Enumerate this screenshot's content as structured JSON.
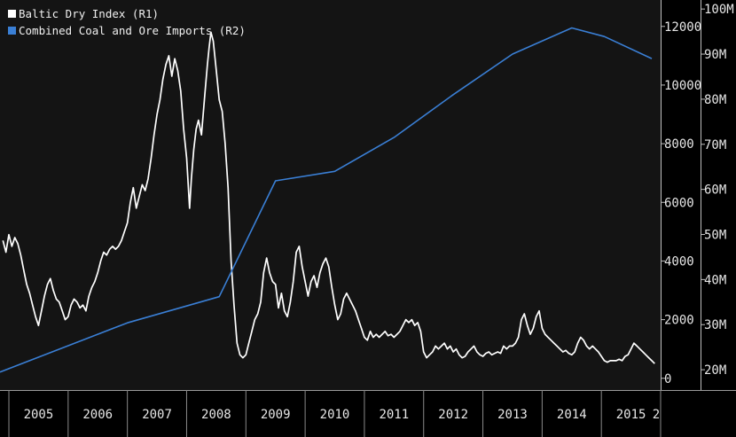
{
  "chart_data": {
    "type": "line",
    "title": "",
    "grid": false,
    "legend": {
      "placement": "top-left"
    },
    "legend_entries": [
      {
        "label": "Baltic Dry Index (R1)",
        "color": "#ffffff"
      },
      {
        "label": "Combined Coal and Ore Imports (R2)",
        "color": "#3a7fd5"
      }
    ],
    "x_axis": {
      "range": [
        2004.85,
        2016.0
      ],
      "tick_labels": [
        "2005",
        "2006",
        "2007",
        "2008",
        "2009",
        "2010",
        "2011",
        "2012",
        "2013",
        "2014",
        "2015",
        "2"
      ]
    },
    "r1_axis": {
      "range": [
        -400,
        12900
      ],
      "ticks": [
        0,
        2000,
        4000,
        6000,
        8000,
        10000,
        12000
      ],
      "tick_labels": [
        "0",
        "2000",
        "4000",
        "6000",
        "8000",
        "10000",
        "12000"
      ]
    },
    "r2_axis": {
      "range": [
        15500000,
        102000000
      ],
      "ticks": [
        20000000,
        30000000,
        40000000,
        50000000,
        60000000,
        70000000,
        80000000,
        90000000,
        100000000
      ],
      "tick_labels": [
        "20M",
        "30M",
        "40M",
        "50M",
        "60M",
        "70M",
        "80M",
        "90M",
        "100M"
      ]
    },
    "series": [
      {
        "name": "Baltic Dry Index (R1)",
        "axis": "r1",
        "color": "#ffffff",
        "points": [
          [
            2004.9,
            4700
          ],
          [
            2004.95,
            4300
          ],
          [
            2005.0,
            4900
          ],
          [
            2005.05,
            4500
          ],
          [
            2005.1,
            4800
          ],
          [
            2005.15,
            4600
          ],
          [
            2005.2,
            4200
          ],
          [
            2005.25,
            3700
          ],
          [
            2005.3,
            3200
          ],
          [
            2005.35,
            2900
          ],
          [
            2005.4,
            2500
          ],
          [
            2005.45,
            2100
          ],
          [
            2005.5,
            1800
          ],
          [
            2005.55,
            2300
          ],
          [
            2005.6,
            2800
          ],
          [
            2005.65,
            3200
          ],
          [
            2005.7,
            3400
          ],
          [
            2005.75,
            3000
          ],
          [
            2005.8,
            2700
          ],
          [
            2005.85,
            2600
          ],
          [
            2005.9,
            2300
          ],
          [
            2005.95,
            2000
          ],
          [
            2006.0,
            2100
          ],
          [
            2006.05,
            2500
          ],
          [
            2006.1,
            2700
          ],
          [
            2006.15,
            2600
          ],
          [
            2006.2,
            2400
          ],
          [
            2006.25,
            2500
          ],
          [
            2006.3,
            2300
          ],
          [
            2006.35,
            2800
          ],
          [
            2006.4,
            3100
          ],
          [
            2006.45,
            3300
          ],
          [
            2006.5,
            3600
          ],
          [
            2006.55,
            4000
          ],
          [
            2006.6,
            4300
          ],
          [
            2006.65,
            4200
          ],
          [
            2006.7,
            4400
          ],
          [
            2006.75,
            4500
          ],
          [
            2006.8,
            4400
          ],
          [
            2006.85,
            4500
          ],
          [
            2006.9,
            4700
          ],
          [
            2006.95,
            5000
          ],
          [
            2007.0,
            5300
          ],
          [
            2007.05,
            6000
          ],
          [
            2007.1,
            6500
          ],
          [
            2007.15,
            5800
          ],
          [
            2007.2,
            6200
          ],
          [
            2007.25,
            6600
          ],
          [
            2007.3,
            6400
          ],
          [
            2007.35,
            6800
          ],
          [
            2007.4,
            7500
          ],
          [
            2007.45,
            8300
          ],
          [
            2007.5,
            9000
          ],
          [
            2007.55,
            9500
          ],
          [
            2007.6,
            10200
          ],
          [
            2007.65,
            10700
          ],
          [
            2007.7,
            11000
          ],
          [
            2007.75,
            10300
          ],
          [
            2007.8,
            10900
          ],
          [
            2007.85,
            10500
          ],
          [
            2007.9,
            9800
          ],
          [
            2007.95,
            8500
          ],
          [
            2008.0,
            7500
          ],
          [
            2008.05,
            5800
          ],
          [
            2008.08,
            6800
          ],
          [
            2008.12,
            7800
          ],
          [
            2008.16,
            8500
          ],
          [
            2008.2,
            8800
          ],
          [
            2008.25,
            8300
          ],
          [
            2008.3,
            9500
          ],
          [
            2008.35,
            10700
          ],
          [
            2008.38,
            11300
          ],
          [
            2008.41,
            11800
          ],
          [
            2008.45,
            11500
          ],
          [
            2008.5,
            10500
          ],
          [
            2008.55,
            9500
          ],
          [
            2008.6,
            9100
          ],
          [
            2008.65,
            8000
          ],
          [
            2008.7,
            6500
          ],
          [
            2008.75,
            4000
          ],
          [
            2008.8,
            2500
          ],
          [
            2008.85,
            1200
          ],
          [
            2008.9,
            800
          ],
          [
            2008.95,
            700
          ],
          [
            2009.0,
            800
          ],
          [
            2009.05,
            1200
          ],
          [
            2009.1,
            1600
          ],
          [
            2009.15,
            2000
          ],
          [
            2009.2,
            2200
          ],
          [
            2009.25,
            2600
          ],
          [
            2009.3,
            3600
          ],
          [
            2009.35,
            4100
          ],
          [
            2009.4,
            3600
          ],
          [
            2009.45,
            3300
          ],
          [
            2009.5,
            3200
          ],
          [
            2009.55,
            2400
          ],
          [
            2009.6,
            2900
          ],
          [
            2009.65,
            2300
          ],
          [
            2009.7,
            2100
          ],
          [
            2009.75,
            2600
          ],
          [
            2009.8,
            3300
          ],
          [
            2009.85,
            4300
          ],
          [
            2009.9,
            4500
          ],
          [
            2009.95,
            3800
          ],
          [
            2010.0,
            3300
          ],
          [
            2010.05,
            2800
          ],
          [
            2010.1,
            3300
          ],
          [
            2010.15,
            3500
          ],
          [
            2010.2,
            3100
          ],
          [
            2010.25,
            3600
          ],
          [
            2010.3,
            3900
          ],
          [
            2010.35,
            4100
          ],
          [
            2010.4,
            3800
          ],
          [
            2010.45,
            3100
          ],
          [
            2010.5,
            2500
          ],
          [
            2010.55,
            2000
          ],
          [
            2010.6,
            2200
          ],
          [
            2010.65,
            2700
          ],
          [
            2010.7,
            2900
          ],
          [
            2010.75,
            2700
          ],
          [
            2010.8,
            2500
          ],
          [
            2010.85,
            2300
          ],
          [
            2010.9,
            2000
          ],
          [
            2010.95,
            1700
          ],
          [
            2011.0,
            1400
          ],
          [
            2011.05,
            1300
          ],
          [
            2011.1,
            1600
          ],
          [
            2011.15,
            1400
          ],
          [
            2011.2,
            1500
          ],
          [
            2011.25,
            1400
          ],
          [
            2011.3,
            1500
          ],
          [
            2011.35,
            1600
          ],
          [
            2011.4,
            1450
          ],
          [
            2011.45,
            1500
          ],
          [
            2011.5,
            1400
          ],
          [
            2011.55,
            1500
          ],
          [
            2011.6,
            1600
          ],
          [
            2011.65,
            1800
          ],
          [
            2011.7,
            2000
          ],
          [
            2011.75,
            1900
          ],
          [
            2011.8,
            2000
          ],
          [
            2011.85,
            1800
          ],
          [
            2011.9,
            1900
          ],
          [
            2011.95,
            1600
          ],
          [
            2012.0,
            900
          ],
          [
            2012.05,
            700
          ],
          [
            2012.1,
            800
          ],
          [
            2012.15,
            900
          ],
          [
            2012.2,
            1100
          ],
          [
            2012.25,
            1000
          ],
          [
            2012.3,
            1100
          ],
          [
            2012.35,
            1200
          ],
          [
            2012.4,
            1000
          ],
          [
            2012.45,
            1100
          ],
          [
            2012.5,
            900
          ],
          [
            2012.55,
            1000
          ],
          [
            2012.6,
            800
          ],
          [
            2012.65,
            700
          ],
          [
            2012.7,
            750
          ],
          [
            2012.75,
            900
          ],
          [
            2012.8,
            1000
          ],
          [
            2012.85,
            1100
          ],
          [
            2012.9,
            900
          ],
          [
            2012.95,
            800
          ],
          [
            2013.0,
            750
          ],
          [
            2013.05,
            850
          ],
          [
            2013.1,
            900
          ],
          [
            2013.15,
            800
          ],
          [
            2013.2,
            850
          ],
          [
            2013.25,
            900
          ],
          [
            2013.3,
            850
          ],
          [
            2013.35,
            1100
          ],
          [
            2013.4,
            1000
          ],
          [
            2013.45,
            1100
          ],
          [
            2013.5,
            1100
          ],
          [
            2013.55,
            1200
          ],
          [
            2013.6,
            1400
          ],
          [
            2013.65,
            2000
          ],
          [
            2013.7,
            2200
          ],
          [
            2013.75,
            1800
          ],
          [
            2013.8,
            1500
          ],
          [
            2013.85,
            1700
          ],
          [
            2013.9,
            2100
          ],
          [
            2013.95,
            2300
          ],
          [
            2014.0,
            1700
          ],
          [
            2014.05,
            1500
          ],
          [
            2014.1,
            1400
          ],
          [
            2014.15,
            1300
          ],
          [
            2014.2,
            1200
          ],
          [
            2014.25,
            1100
          ],
          [
            2014.3,
            1000
          ],
          [
            2014.35,
            900
          ],
          [
            2014.4,
            950
          ],
          [
            2014.45,
            850
          ],
          [
            2014.5,
            800
          ],
          [
            2014.55,
            900
          ],
          [
            2014.6,
            1200
          ],
          [
            2014.65,
            1400
          ],
          [
            2014.7,
            1300
          ],
          [
            2014.75,
            1100
          ],
          [
            2014.8,
            1000
          ],
          [
            2014.85,
            1100
          ],
          [
            2014.9,
            1000
          ],
          [
            2014.95,
            900
          ],
          [
            2015.0,
            750
          ],
          [
            2015.05,
            600
          ],
          [
            2015.1,
            550
          ],
          [
            2015.15,
            600
          ],
          [
            2015.2,
            600
          ],
          [
            2015.25,
            600
          ],
          [
            2015.3,
            650
          ],
          [
            2015.35,
            600
          ],
          [
            2015.4,
            750
          ],
          [
            2015.45,
            800
          ],
          [
            2015.5,
            1000
          ],
          [
            2015.55,
            1200
          ],
          [
            2015.6,
            1100
          ],
          [
            2015.65,
            1000
          ],
          [
            2015.7,
            900
          ],
          [
            2015.75,
            800
          ],
          [
            2015.8,
            700
          ],
          [
            2015.85,
            600
          ],
          [
            2015.9,
            500
          ]
        ]
      },
      {
        "name": "Combined Coal and Ore Imports (R2)",
        "axis": "r2",
        "color": "#3a7fd5",
        "points": [
          [
            2004.85,
            19500000
          ],
          [
            2007.0,
            30400000
          ],
          [
            2008.55,
            36200000
          ],
          [
            2009.5,
            61900000
          ],
          [
            2010.5,
            64000000
          ],
          [
            2011.5,
            71500000
          ],
          [
            2012.5,
            81000000
          ],
          [
            2013.5,
            90000000
          ],
          [
            2014.5,
            95800000
          ],
          [
            2015.05,
            93900000
          ],
          [
            2015.85,
            89000000
          ]
        ]
      }
    ]
  }
}
